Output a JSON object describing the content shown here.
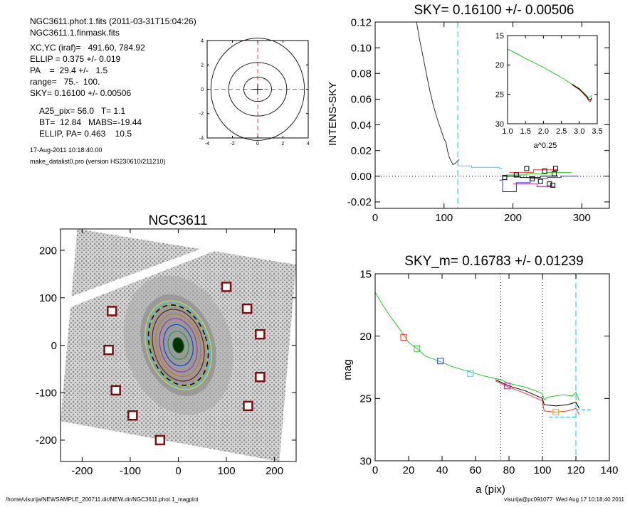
{
  "info": {
    "lines1": [
      "NGC3611.phot.1.fits  (2011-03-31T15:04:26)",
      "NGC3611.1.finmask.fits"
    ],
    "lines2": [
      "XC,YC (iraf)=   491.60, 784.92",
      "ELLIP = 0.375 +/- 0.019",
      "PA    =  29.4 +/-   1.5",
      "range=   75.-  100.",
      "SKY= 0.16100 +/- 0.00506"
    ],
    "lines3": [
      "A25_pix= 56.0   T= 1.1",
      "BT=  12.84   MABS=-19.44",
      "ELLIP, PA= 0.463    10.5"
    ],
    "lines4": [
      "17-Aug-2011 10:18:40.00",
      "make_datalist0.pro (version HS230610/211210)"
    ]
  },
  "footer": {
    "left": "/home/visurija/NEWSAMPLE_200711.dir/NEW.dir/NGC3611.phot.1_magplot",
    "right": "visurija@pc091077  Wed Aug 17 10:18:40 2011"
  },
  "colors": {
    "cyan": "#33ccff",
    "red": "#ff3333",
    "green": "#22cc22",
    "blue": "#2233ff",
    "purple": "#aa2299",
    "orange": "#ff9900",
    "box": "#7a1010"
  },
  "chart_data": [
    {
      "id": "center-contour",
      "type": "contour",
      "xlim": [
        -4,
        4
      ],
      "ylim": [
        -4,
        4
      ],
      "xticks": [
        -4,
        -2,
        0,
        2,
        4
      ],
      "yticks": [
        -4,
        -2,
        0,
        2,
        4
      ],
      "contours": [
        [
          1.1,
          1.0
        ],
        [
          2.3,
          2.2
        ],
        [
          3.7,
          4.2
        ]
      ],
      "crosshair": [
        0,
        0
      ]
    },
    {
      "id": "sky-profile",
      "type": "line",
      "title": "SKY= 0.16100 +/- 0.00506",
      "ylabel": "INTENS-SKY",
      "xlim": [
        0,
        340
      ],
      "ylim": [
        -0.025,
        0.12
      ],
      "xticks": [
        0,
        100,
        200,
        300
      ],
      "yticks": [
        -0.02,
        0.0,
        0.02,
        0.04,
        0.06,
        0.08,
        0.1,
        0.12
      ],
      "ytick_labels": [
        "-0.02",
        "0.00",
        "0.02",
        "0.04",
        "0.06",
        "0.08",
        "0.10",
        "0.12"
      ],
      "vline": 120,
      "profile": [
        [
          60,
          0.12
        ],
        [
          65,
          0.105
        ],
        [
          70,
          0.092
        ],
        [
          75,
          0.078
        ],
        [
          80,
          0.065
        ],
        [
          85,
          0.054
        ],
        [
          90,
          0.045
        ],
        [
          95,
          0.037
        ],
        [
          100,
          0.029
        ],
        [
          103,
          0.026
        ],
        [
          105,
          0.02
        ],
        [
          108,
          0.014
        ],
        [
          110,
          0.012
        ],
        [
          113,
          0.009
        ],
        [
          116,
          0.01
        ],
        [
          118,
          0.011
        ],
        [
          120,
          0.012
        ],
        [
          122,
          0.013
        ]
      ],
      "steps": [
        {
          "color": "cyan",
          "points": [
            [
              120,
              0.008
            ],
            [
              140,
              0.008
            ],
            [
              140,
              0.007
            ],
            [
              180,
              0.007
            ],
            [
              180,
              0.006
            ],
            [
              185,
              0.006
            ]
          ]
        },
        {
          "color": "blue",
          "points": [
            [
              180,
              -0.003
            ],
            [
              185,
              -0.003
            ],
            [
              185,
              -0.012
            ],
            [
              205,
              -0.012
            ],
            [
              205,
              -0.005
            ],
            [
              225,
              -0.005
            ],
            [
              225,
              -0.002
            ],
            [
              250,
              -0.002
            ],
            [
              250,
              -0.001
            ],
            [
              270,
              -0.001
            ],
            [
              270,
              0.0
            ],
            [
              295,
              0.0
            ]
          ]
        },
        {
          "color": "black",
          "points": [
            [
              185,
              0.0
            ],
            [
              210,
              0.0
            ],
            [
              210,
              -0.001
            ],
            [
              240,
              -0.001
            ],
            [
              240,
              0.0
            ],
            [
              265,
              0.0
            ]
          ]
        },
        {
          "color": "green",
          "points": [
            [
              190,
              0.001
            ],
            [
              220,
              0.001
            ],
            [
              220,
              0.002
            ],
            [
              250,
              0.002
            ],
            [
              250,
              0.003
            ],
            [
              285,
              0.003
            ]
          ]
        },
        {
          "color": "red",
          "points": [
            [
              195,
              0.003
            ],
            [
              230,
              0.003
            ],
            [
              230,
              0.005
            ],
            [
              265,
              0.005
            ]
          ]
        },
        {
          "color": "purple",
          "points": [
            [
              200,
              -0.006
            ],
            [
              235,
              -0.006
            ],
            [
              235,
              -0.008
            ],
            [
              260,
              -0.008
            ]
          ]
        }
      ],
      "markers": [
        [
          188,
          -0.001
        ],
        [
          205,
          0.001
        ],
        [
          220,
          0.006
        ],
        [
          228,
          -0.002
        ],
        [
          240,
          -0.004
        ],
        [
          246,
          0.004
        ],
        [
          253,
          -0.006
        ],
        [
          258,
          -0.007
        ],
        [
          262,
          0.006
        ],
        [
          260,
          0.002
        ]
      ],
      "inset": {
        "xlabel": "a^0.25",
        "xlim": [
          1.0,
          3.5
        ],
        "ylim": [
          15,
          30
        ],
        "xticks": [
          1.0,
          1.5,
          2.0,
          2.5,
          3.0,
          3.5
        ],
        "xtick_labels": [
          "1.0",
          "1.5",
          "2.0",
          "2.5",
          "3.0",
          "3.5"
        ],
        "yticks": [
          15,
          20,
          25,
          30
        ],
        "series": [
          {
            "color": "green",
            "points": [
              [
                1.0,
                17.3
              ],
              [
                1.2,
                17.9
              ],
              [
                1.5,
                18.9
              ],
              [
                1.8,
                19.8
              ],
              [
                2.0,
                20.4
              ],
              [
                2.2,
                21.1
              ],
              [
                2.4,
                21.8
              ],
              [
                2.6,
                22.5
              ],
              [
                2.8,
                23.3
              ],
              [
                3.0,
                24.0
              ],
              [
                3.1,
                24.6
              ],
              [
                3.2,
                25.2
              ],
              [
                3.25,
                25.6
              ],
              [
                3.3,
                25.4
              ],
              [
                3.35,
                25.2
              ]
            ]
          },
          {
            "color": "red",
            "points": [
              [
                2.8,
                23.4
              ],
              [
                3.0,
                24.2
              ],
              [
                3.1,
                24.8
              ],
              [
                3.2,
                25.5
              ],
              [
                3.25,
                26.0
              ],
              [
                3.3,
                26.3
              ],
              [
                3.35,
                25.8
              ]
            ]
          },
          {
            "color": "black",
            "points": [
              [
                2.8,
                23.3
              ],
              [
                3.0,
                24.1
              ],
              [
                3.1,
                24.7
              ],
              [
                3.2,
                25.3
              ],
              [
                3.25,
                25.8
              ],
              [
                3.3,
                26.0
              ],
              [
                3.35,
                25.6
              ]
            ]
          }
        ]
      }
    },
    {
      "id": "galaxy-image",
      "type": "image",
      "title": "NGC3611",
      "xlim": [
        -245,
        245
      ],
      "ylim": [
        -245,
        245
      ],
      "xticks": [
        -200,
        -100,
        0,
        100,
        200
      ],
      "yticks": [
        -200,
        -100,
        0,
        100,
        200
      ],
      "squares": [
        [
          -138,
          72
        ],
        [
          -145,
          -10
        ],
        [
          -130,
          -95
        ],
        [
          -95,
          -148
        ],
        [
          -38,
          -200
        ],
        [
          100,
          123
        ],
        [
          143,
          77
        ],
        [
          170,
          23
        ],
        [
          170,
          -67
        ],
        [
          145,
          -128
        ]
      ],
      "ellipses": [
        {
          "a": 11,
          "b": 16,
          "pa": -12,
          "color": "#006600",
          "fill": "#003300"
        },
        {
          "a": 21,
          "b": 30,
          "pa": -12,
          "color": "#229944",
          "fill": null
        },
        {
          "a": 30,
          "b": 44,
          "pa": -12,
          "color": "#1144cc",
          "fill": null
        },
        {
          "a": 38,
          "b": 57,
          "pa": -13,
          "color": "#aa3399",
          "fill": null
        },
        {
          "a": 45,
          "b": 67,
          "pa": -14,
          "color": "#cc7722",
          "fill": null
        },
        {
          "a": 52,
          "b": 77,
          "pa": -15,
          "color": "#6b2210",
          "fill": null
        },
        {
          "a": 58,
          "b": 88,
          "pa": -16,
          "color": "#aacc22",
          "fill": null
        },
        {
          "a": 66,
          "b": 96,
          "pa": -18,
          "color": "#ccdd44",
          "fill": null
        }
      ],
      "outer_black": {
        "a": 59,
        "b": 87,
        "pa": -18
      },
      "outer_cyan": {
        "a": 62,
        "b": 93,
        "pa": -18
      }
    },
    {
      "id": "mag-profile",
      "type": "line",
      "title": "SKY_m=  0.16783 +/- 0.01239",
      "xlabel": "a (pix)",
      "ylabel": "mag",
      "xlim": [
        0,
        140
      ],
      "ylim": [
        15,
        30
      ],
      "xticks": [
        0,
        20,
        40,
        60,
        80,
        100,
        120,
        140
      ],
      "yticks": [
        15,
        20,
        25,
        30
      ],
      "vlines": [
        {
          "x": 75,
          "color": "black"
        },
        {
          "x": 100,
          "color": "black"
        },
        {
          "x": 120,
          "color": "cyan"
        }
      ],
      "series": [
        {
          "color": "green",
          "points": [
            [
              0,
              16.5
            ],
            [
              5,
              17.6
            ],
            [
              10,
              18.6
            ],
            [
              15,
              19.5
            ],
            [
              20,
              20.5
            ],
            [
              25,
              21.0
            ],
            [
              30,
              21.6
            ],
            [
              38,
              22.0
            ],
            [
              45,
              22.4
            ],
            [
              55,
              22.8
            ],
            [
              65,
              23.2
            ],
            [
              75,
              23.5
            ],
            [
              80,
              23.8
            ],
            [
              90,
              24.1
            ],
            [
              100,
              24.6
            ],
            [
              101,
              25.1
            ],
            [
              103,
              24.9
            ],
            [
              108,
              24.8
            ],
            [
              112,
              24.7
            ],
            [
              118,
              24.8
            ],
            [
              120,
              24.5
            ],
            [
              122,
              25.2
            ]
          ]
        },
        {
          "color": "black",
          "points": [
            [
              72,
              23.5
            ],
            [
              80,
              24.0
            ],
            [
              90,
              24.4
            ],
            [
              100,
              25.0
            ],
            [
              101,
              25.5
            ],
            [
              108,
              25.6
            ],
            [
              115,
              25.5
            ],
            [
              120,
              25.3
            ],
            [
              122,
              25.8
            ]
          ]
        },
        {
          "color": "red",
          "points": [
            [
              72,
              23.6
            ],
            [
              80,
              24.1
            ],
            [
              90,
              24.6
            ],
            [
              100,
              25.2
            ],
            [
              101,
              26.0
            ],
            [
              108,
              26.1
            ],
            [
              115,
              26.0
            ],
            [
              120,
              25.8
            ],
            [
              122,
              26.3
            ]
          ]
        },
        {
          "color": "orange",
          "points": [
            [
              108,
              26.1
            ],
            [
              112,
              26.0
            ]
          ]
        }
      ],
      "dashed": [
        {
          "color": "cyan",
          "points": [
            [
              120,
              25.9
            ],
            [
              130,
              25.9
            ]
          ]
        },
        {
          "color": "cyan",
          "points": [
            [
              104,
              26.5
            ],
            [
              120,
              26.5
            ]
          ]
        }
      ],
      "markers": [
        [
          17,
          20.1,
          "red"
        ],
        [
          25,
          21.0,
          "green"
        ],
        [
          39,
          22.0,
          "blue"
        ],
        [
          57,
          23.0,
          "cyan"
        ],
        [
          79,
          24.0,
          "purple"
        ],
        [
          108,
          26.1,
          "orange"
        ]
      ]
    }
  ]
}
